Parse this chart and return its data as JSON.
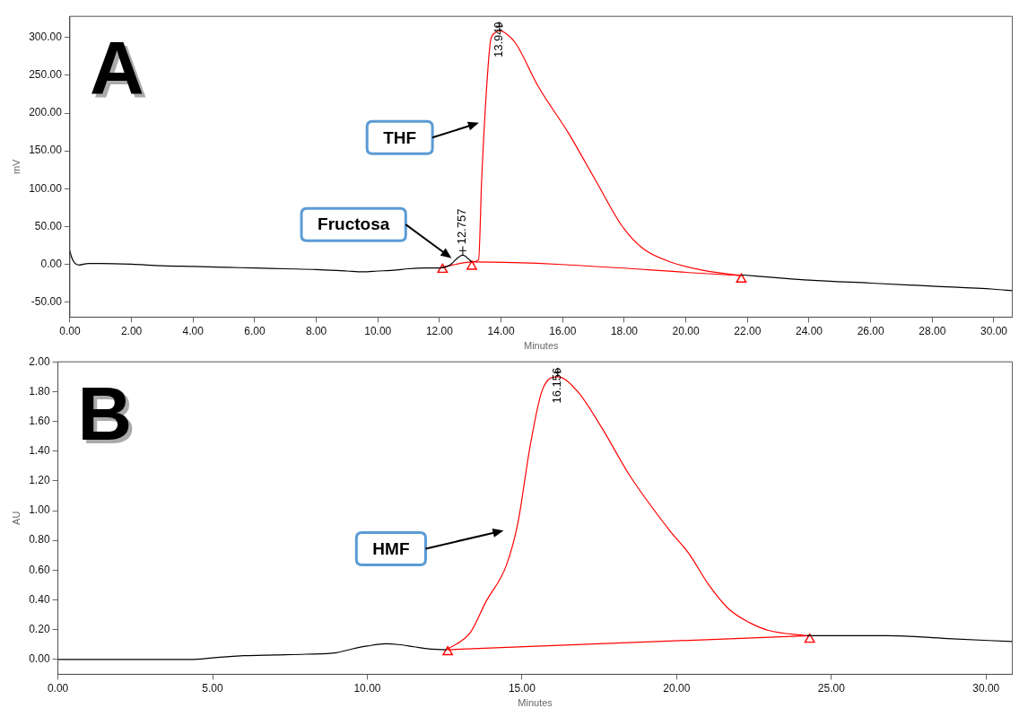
{
  "chart_data": [
    {
      "type": "line",
      "title": "A",
      "xlabel": "Minutes",
      "ylabel": "mV",
      "xlim": [
        0,
        30.6
      ],
      "ylim": [
        -70,
        328
      ],
      "xticks": [
        {
          "value": 0,
          "label": "0.00"
        },
        {
          "value": 2,
          "label": "2.00"
        },
        {
          "value": 4,
          "label": "4.00"
        },
        {
          "value": 6,
          "label": "6.00"
        },
        {
          "value": 8,
          "label": "8.00"
        },
        {
          "value": 10,
          "label": "10.00"
        },
        {
          "value": 12,
          "label": "12.00"
        },
        {
          "value": 14,
          "label": "14.00"
        },
        {
          "value": 16,
          "label": "16.00"
        },
        {
          "value": 18,
          "label": "18.00"
        },
        {
          "value": 20,
          "label": "20.00"
        },
        {
          "value": 22,
          "label": "22.00"
        },
        {
          "value": 24,
          "label": "24.00"
        },
        {
          "value": 26,
          "label": "26.00"
        },
        {
          "value": 28,
          "label": "28.00"
        },
        {
          "value": 30,
          "label": "30.00"
        }
      ],
      "yticks": [
        {
          "value": -50,
          "label": "-50.00"
        },
        {
          "value": 0,
          "label": "0.00"
        },
        {
          "value": 50,
          "label": "50.00"
        },
        {
          "value": 100,
          "label": "100.00"
        },
        {
          "value": 150,
          "label": "150.00"
        },
        {
          "value": 200,
          "label": "200.00"
        },
        {
          "value": 250,
          "label": "250.00"
        },
        {
          "value": 300,
          "label": "300.00"
        }
      ],
      "grid": false,
      "legend": false,
      "line_style": "solid",
      "series": [
        {
          "color": "#000000",
          "marker": "none",
          "x": [
            0,
            0.05,
            0.15,
            0.3,
            0.6,
            1,
            2,
            3,
            4,
            5,
            6,
            7,
            8,
            9,
            9.5,
            10,
            10.5,
            11,
            11.5,
            12,
            12.3,
            12.757,
            13.05,
            17,
            21.8,
            23,
            24,
            26,
            28,
            30,
            30.6
          ],
          "values": [
            18,
            10,
            2,
            -1,
            1,
            1,
            0,
            -2,
            -3,
            -4,
            -5,
            -6,
            -7,
            -9,
            -10,
            -9,
            -8,
            -6,
            -5,
            -5,
            -2,
            12,
            3,
            null,
            -14,
            -18,
            -21,
            -25,
            -29,
            -33,
            -35
          ]
        },
        {
          "color": "#ff0000",
          "marker": "none",
          "x": [
            13.05,
            13.27,
            13.37,
            13.52,
            13.66,
            13.8,
            13.949,
            14.2,
            14.48,
            15.21,
            16.18,
            17.15,
            17.92,
            18.6,
            19.57,
            20.54,
            21.8
          ],
          "values": [
            3,
            6,
            112,
            227,
            296,
            306,
            309,
            304,
            292,
            235,
            174,
            105,
            51,
            21,
            2,
            -8,
            -15
          ]
        },
        {
          "color": "#ff0000",
          "marker": "none",
          "x": [
            12.1,
            13.05,
            21.8
          ],
          "values": [
            -4,
            3,
            -15
          ]
        },
        {
          "type": "scatter",
          "color": "#ff0000",
          "marker": "triangle",
          "x": [
            12.1,
            13.05,
            21.8
          ],
          "values": [
            -7,
            -3,
            -20
          ]
        }
      ],
      "annotations": [
        {
          "text": "13.949",
          "x": 13.949,
          "y": 309
        },
        {
          "text": "12.757",
          "x": 12.757,
          "y": 12
        },
        "THF",
        "Fructosa"
      ]
    },
    {
      "type": "line",
      "title": "B",
      "xlabel": "Minutes",
      "ylabel": "AU",
      "xlim": [
        0,
        30.85
      ],
      "ylim": [
        -0.1,
        2.0
      ],
      "xticks": [
        {
          "value": 0,
          "label": "0.00"
        },
        {
          "value": 5,
          "label": "5.00"
        },
        {
          "value": 10,
          "label": "10.00"
        },
        {
          "value": 15,
          "label": "15.00"
        },
        {
          "value": 20,
          "label": "20.00"
        },
        {
          "value": 25,
          "label": "25.00"
        },
        {
          "value": 30,
          "label": "30.00"
        }
      ],
      "yticks": [
        {
          "value": 0,
          "label": "0.00"
        },
        {
          "value": 0.2,
          "label": "0.20"
        },
        {
          "value": 0.4,
          "label": "0.40"
        },
        {
          "value": 0.6,
          "label": "0.60"
        },
        {
          "value": 0.8,
          "label": "0.80"
        },
        {
          "value": 1,
          "label": "1.00"
        },
        {
          "value": 1.2,
          "label": "1.20"
        },
        {
          "value": 1.4,
          "label": "1.40"
        },
        {
          "value": 1.6,
          "label": "1.60"
        },
        {
          "value": 1.8,
          "label": "1.80"
        },
        {
          "value": 2,
          "label": "2.00"
        }
      ],
      "grid": false,
      "legend": false,
      "line_style": "solid",
      "series": [
        {
          "color": "#000000",
          "marker": "none",
          "x": [
            0,
            2,
            4.3,
            5,
            6,
            7,
            8,
            9,
            9.5,
            10,
            10.6,
            11,
            11.5,
            12,
            12.56,
            18,
            24.2,
            26.8,
            28.75,
            30.85
          ],
          "values": [
            0,
            0,
            0,
            0.01,
            0.025,
            0.03,
            0.035,
            0.045,
            0.07,
            0.09,
            0.105,
            0.1,
            0.085,
            0.07,
            0.065,
            null,
            0.16,
            0.16,
            0.14,
            0.12
          ]
        },
        {
          "color": "#ff0000",
          "marker": "none",
          "x": [
            12.56,
            13.33,
            13.84,
            14.49,
            14.87,
            15.26,
            15.64,
            16.156,
            16.8,
            17.57,
            18.47,
            19.76,
            20.4,
            21.04,
            21.68,
            22.33,
            22.97,
            24.2
          ],
          "values": [
            0.065,
            0.18,
            0.39,
            0.63,
            0.92,
            1.43,
            1.8,
            1.9,
            1.8,
            1.56,
            1.24,
            0.87,
            0.71,
            0.5,
            0.34,
            0.25,
            0.195,
            0.16
          ]
        },
        {
          "color": "#ff0000",
          "marker": "none",
          "x": [
            12.6,
            24.3
          ],
          "values": [
            0.065,
            0.16
          ]
        },
        {
          "type": "scatter",
          "color": "#ff0000",
          "marker": "triangle",
          "x": [
            12.6,
            24.3
          ],
          "values": [
            0.05,
            0.134
          ]
        }
      ],
      "annotations": [
        {
          "text": "16.156",
          "x": 16.156,
          "y": 1.9
        },
        "HMF"
      ]
    }
  ]
}
